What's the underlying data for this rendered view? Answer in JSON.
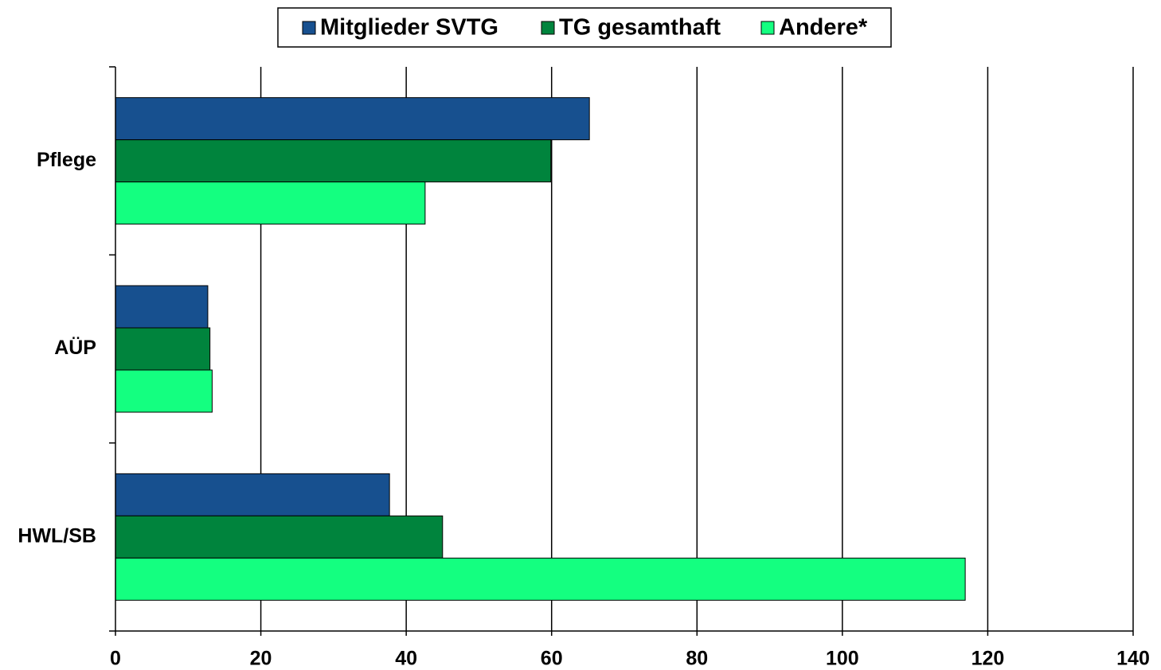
{
  "chart_data": {
    "type": "barh",
    "categories": [
      "Pflege",
      "AÜP",
      "HWL/SB"
    ],
    "series": [
      {
        "name": "Mitglieder SVTG",
        "color": "#17508f",
        "values": [
          65.2,
          12.7,
          37.7
        ]
      },
      {
        "name": "TG gesamthaft",
        "color": "#00843d",
        "values": [
          59.9,
          13.0,
          45.0
        ]
      },
      {
        "name": "Andere*",
        "color": "#14ff80",
        "values": [
          42.6,
          13.3,
          116.9
        ]
      }
    ],
    "xlim": [
      0,
      140
    ],
    "xticks": [
      0,
      20,
      40,
      60,
      80,
      100,
      120,
      140
    ],
    "grid": true,
    "legend": "top"
  }
}
